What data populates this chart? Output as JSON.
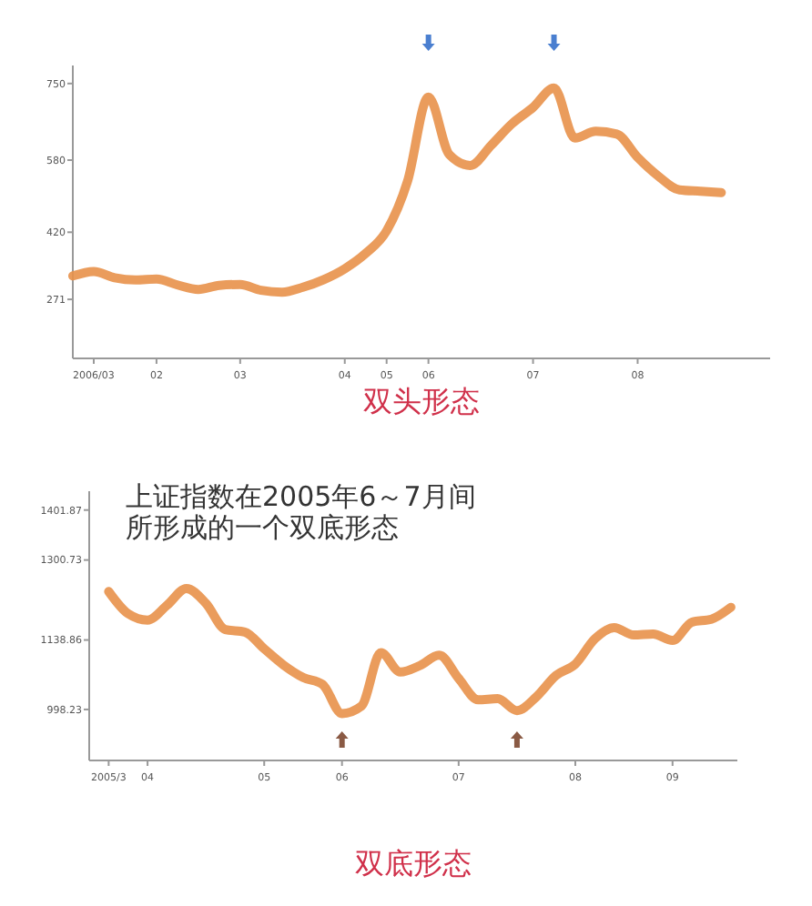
{
  "chart_data": [
    {
      "type": "line",
      "title": "双头形态",
      "categories": [
        null,
        "2006/03",
        null,
        null,
        "02",
        null,
        null,
        null,
        "03",
        null,
        null,
        null,
        null,
        "04",
        null,
        "05",
        null,
        "06",
        null,
        null,
        null,
        null,
        "07",
        null,
        null,
        null,
        null,
        "08",
        null,
        null,
        null,
        null
      ],
      "series": [
        {
          "color": "#e8914a",
          "values": [
            323,
            333,
            319,
            314,
            316,
            303,
            293,
            302,
            304,
            291,
            287,
            298,
            315,
            339,
            373,
            423,
            533,
            720,
            592,
            568,
            613,
            661,
            697,
            740,
            629,
            644,
            638,
            586,
            544,
            514,
            511,
            508
          ]
        }
      ],
      "ylim": [
        140,
        790
      ],
      "yticks": [
        271,
        420,
        580,
        750
      ],
      "line_style": "solid",
      "marker": "none",
      "grid": false
    },
    {
      "type": "line",
      "title": "双底形态",
      "annotations": [
        "上证指数在2005年6～7月间",
        "所形成的一个双底形态"
      ],
      "categories": [
        "2005/3",
        null,
        "04",
        null,
        null,
        null,
        null,
        null,
        "05",
        null,
        null,
        null,
        "06",
        null,
        null,
        null,
        null,
        null,
        "07",
        null,
        null,
        null,
        null,
        null,
        "08",
        null,
        null,
        null,
        null,
        "09",
        null,
        null,
        null
      ],
      "series": [
        {
          "color": "#e8914a",
          "values": [
            1237,
            1192,
            1179,
            1209,
            1243,
            1213,
            1160,
            1155,
            1121,
            1088,
            1063,
            1049,
            990,
            1005,
            1113,
            1074,
            1087,
            1108,
            1061,
            1018,
            1020,
            996,
            1024,
            1067,
            1090,
            1141,
            1164,
            1149,
            1151,
            1138,
            1175,
            1181,
            1205
          ]
        }
      ],
      "ylim": [
        895,
        1440
      ],
      "yticks": [
        998.23,
        1138.86,
        1300.73,
        1401.87
      ],
      "line_style": "solid",
      "marker": "none",
      "grid": false
    }
  ]
}
